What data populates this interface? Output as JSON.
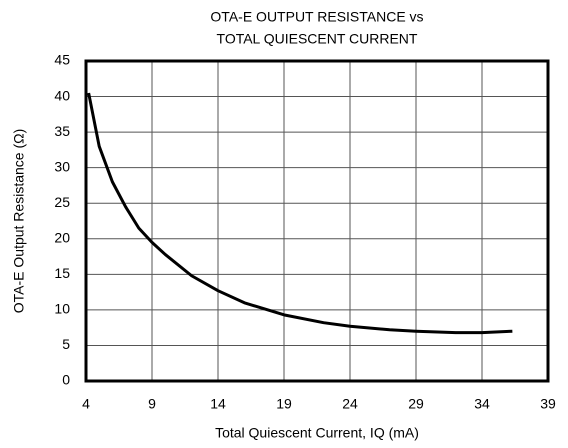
{
  "chart_data": {
    "type": "line",
    "title": [
      "OTA-E OUTPUT RESISTANCE vs",
      "TOTAL QUIESCENT CURRENT"
    ],
    "xlabel": "Total Quiescent Current, IQ (mA)",
    "ylabel": "OTA-E Output Resistance (Ω)",
    "series": [
      {
        "color": "#000000",
        "x": [
          4.2,
          5,
          6,
          7,
          8,
          9,
          10,
          12,
          14,
          16,
          19,
          22,
          24,
          27,
          29,
          32,
          34,
          36.3
        ],
        "values": [
          40.5,
          33,
          28,
          24.5,
          21.5,
          19.5,
          17.8,
          14.8,
          12.7,
          11,
          9.3,
          8.2,
          7.7,
          7.2,
          7,
          6.8,
          6.8,
          7
        ]
      }
    ],
    "xlim": [
      4,
      39
    ],
    "xticks": [
      4,
      9,
      14,
      19,
      24,
      29,
      34,
      39
    ],
    "ylim": [
      0,
      45
    ],
    "yticks": [
      0,
      5,
      10,
      15,
      20,
      25,
      30,
      35,
      40,
      45
    ],
    "grid": true
  }
}
